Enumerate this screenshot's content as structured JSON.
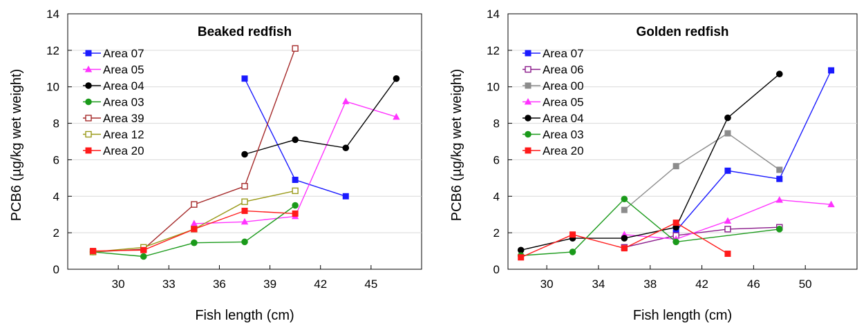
{
  "chart_data": [
    {
      "type": "line",
      "title": "Beaked redfish",
      "xlabel": "Fish length (cm)",
      "ylabel": "PCB6 (µg/kg wet weight)",
      "xlim": [
        27,
        48
      ],
      "ylim": [
        0,
        14
      ],
      "xticks": [
        30,
        33,
        36,
        39,
        42,
        45
      ],
      "yticks": [
        0,
        2,
        4,
        6,
        8,
        10,
        12,
        14
      ],
      "grid": "horizontal",
      "legend_position": "top-left",
      "series": [
        {
          "name": "Area 07",
          "color": "#1a1aff",
          "marker": "square-filled",
          "points": [
            [
              37.5,
              10.45
            ],
            [
              40.5,
              4.9
            ],
            [
              43.5,
              4.0
            ]
          ]
        },
        {
          "name": "Area 05",
          "color": "#ff33ff",
          "marker": "triangle-filled",
          "points": [
            [
              34.5,
              2.5
            ],
            [
              37.5,
              2.6
            ],
            [
              40.5,
              2.9
            ],
            [
              43.5,
              9.2
            ],
            [
              46.5,
              8.35
            ]
          ]
        },
        {
          "name": "Area 04",
          "color": "#000000",
          "marker": "circle-filled",
          "points": [
            [
              37.5,
              6.3
            ],
            [
              40.5,
              7.1
            ],
            [
              43.5,
              6.65
            ],
            [
              46.5,
              10.45
            ]
          ]
        },
        {
          "name": "Area 03",
          "color": "#1a9a1a",
          "marker": "circle-filled",
          "points": [
            [
              28.5,
              0.95
            ],
            [
              31.5,
              0.7
            ],
            [
              34.5,
              1.45
            ],
            [
              37.5,
              1.5
            ],
            [
              40.5,
              3.5
            ]
          ]
        },
        {
          "name": "Area 39",
          "color": "#a52a2a",
          "marker": "square-open",
          "points": [
            [
              28.5,
              0.95
            ],
            [
              31.5,
              1.1
            ],
            [
              34.5,
              3.55
            ],
            [
              37.5,
              4.55
            ],
            [
              40.5,
              12.1
            ]
          ]
        },
        {
          "name": "Area 12",
          "color": "#9a9a1a",
          "marker": "square-open",
          "points": [
            [
              28.5,
              0.95
            ],
            [
              31.5,
              1.2
            ],
            [
              34.5,
              2.2
            ],
            [
              37.5,
              3.7
            ],
            [
              40.5,
              4.3
            ]
          ]
        },
        {
          "name": "Area 20",
          "color": "#ff1a1a",
          "marker": "square-filled",
          "points": [
            [
              28.5,
              1.0
            ],
            [
              31.5,
              1.05
            ],
            [
              34.5,
              2.2
            ],
            [
              37.5,
              3.2
            ],
            [
              40.5,
              3.05
            ]
          ]
        }
      ]
    },
    {
      "type": "line",
      "title": "Golden redfish",
      "xlabel": "Fish length (cm)",
      "ylabel": "PCB6 (µg/kg wet weight)",
      "xlim": [
        27,
        54
      ],
      "ylim": [
        0,
        14
      ],
      "xticks": [
        30,
        34,
        38,
        42,
        46,
        50
      ],
      "yticks": [
        0,
        2,
        4,
        6,
        8,
        10,
        12,
        14
      ],
      "grid": "horizontal",
      "legend_position": "top-left",
      "series": [
        {
          "name": "Area 07",
          "color": "#1a1aff",
          "marker": "square-filled",
          "points": [
            [
              40,
              2.1
            ],
            [
              44,
              5.4
            ],
            [
              48,
              4.95
            ],
            [
              52,
              10.9
            ]
          ]
        },
        {
          "name": "Area 06",
          "color": "#8a1a8a",
          "marker": "square-open",
          "points": [
            [
              36,
              1.2
            ],
            [
              40,
              1.85
            ],
            [
              44,
              2.2
            ],
            [
              48,
              2.3
            ]
          ]
        },
        {
          "name": "Area 00",
          "color": "#8c8c8c",
          "marker": "square-filled",
          "points": [
            [
              36,
              3.25
            ],
            [
              40,
              5.65
            ],
            [
              44,
              7.45
            ],
            [
              48,
              5.45
            ]
          ]
        },
        {
          "name": "Area 05",
          "color": "#ff33ff",
          "marker": "triangle-filled",
          "points": [
            [
              36,
              1.9
            ],
            [
              40,
              1.65
            ],
            [
              44,
              2.65
            ],
            [
              48,
              3.8
            ],
            [
              52,
              3.55
            ]
          ]
        },
        {
          "name": "Area 04",
          "color": "#000000",
          "marker": "circle-filled",
          "points": [
            [
              28,
              1.05
            ],
            [
              32,
              1.7
            ],
            [
              36,
              1.7
            ],
            [
              40,
              2.3
            ],
            [
              44,
              8.3
            ],
            [
              48,
              10.7
            ]
          ]
        },
        {
          "name": "Area 03",
          "color": "#1a9a1a",
          "marker": "circle-filled",
          "points": [
            [
              28,
              0.75
            ],
            [
              32,
              0.95
            ],
            [
              36,
              3.85
            ],
            [
              40,
              1.5
            ],
            [
              48,
              2.2
            ]
          ]
        },
        {
          "name": "Area 20",
          "color": "#ff1a1a",
          "marker": "square-filled",
          "points": [
            [
              28,
              0.65
            ],
            [
              32,
              1.9
            ],
            [
              36,
              1.15
            ],
            [
              40,
              2.55
            ],
            [
              44,
              0.85
            ]
          ]
        }
      ]
    }
  ]
}
